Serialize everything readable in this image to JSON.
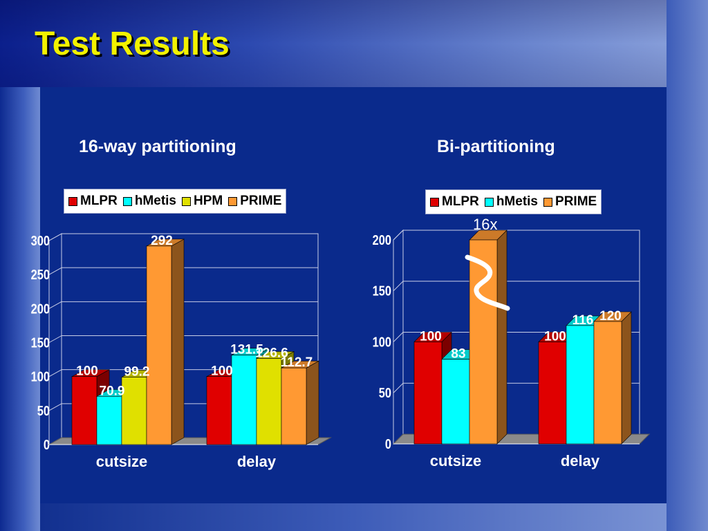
{
  "slide": {
    "title": "Test Results"
  },
  "annotations": {
    "ratio_label": "16x"
  },
  "colors": {
    "MLPR": "#e00000",
    "hMetis": "#00ffff",
    "HPM": "#e0e000",
    "PRIME": "#ff9933"
  },
  "chart_data": [
    {
      "type": "bar",
      "title": "16-way partitioning",
      "categories": [
        "cutsize",
        "delay"
      ],
      "series": [
        {
          "name": "MLPR",
          "values": [
            100,
            100
          ]
        },
        {
          "name": "hMetis",
          "values": [
            70.9,
            131.5
          ]
        },
        {
          "name": "HPM",
          "values": [
            99.2,
            126.6
          ]
        },
        {
          "name": "PRIME",
          "values": [
            292,
            112.7
          ]
        }
      ],
      "data_labels": [
        [
          "100",
          "100"
        ],
        [
          "70.9",
          "131.5"
        ],
        [
          "99.2",
          "126.6"
        ],
        [
          "292",
          "112.7"
        ]
      ],
      "ylim": [
        0,
        300
      ],
      "yticks": [
        "0",
        "50",
        "100",
        "150",
        "200",
        "250",
        "300"
      ],
      "legend_position": "top",
      "grid": true,
      "three_d": true
    },
    {
      "type": "bar",
      "title": "Bi-partitioning",
      "categories": [
        "cutsize",
        "delay"
      ],
      "series": [
        {
          "name": "MLPR",
          "values": [
            100,
            100
          ]
        },
        {
          "name": "hMetis",
          "values": [
            83,
            116
          ]
        },
        {
          "name": "PRIME",
          "values": [
            200,
            120
          ]
        }
      ],
      "data_labels": [
        [
          "100",
          "100"
        ],
        [
          "83",
          "116"
        ],
        [
          "",
          "120"
        ]
      ],
      "ylim": [
        0,
        200
      ],
      "yticks": [
        "0",
        "50",
        "100",
        "150",
        "200"
      ],
      "legend_position": "top",
      "grid": true,
      "three_d": true
    }
  ]
}
